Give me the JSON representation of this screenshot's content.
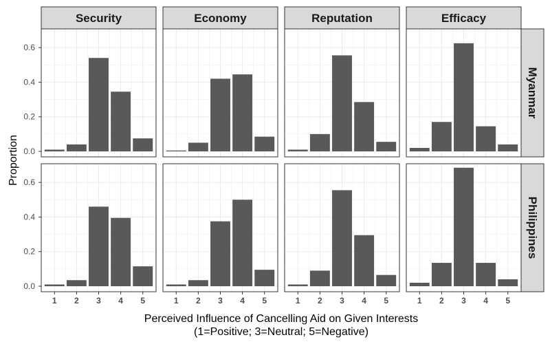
{
  "chart_data": {
    "type": "bar",
    "facet_columns": [
      "Security",
      "Economy",
      "Reputation",
      "Efficacy"
    ],
    "facet_rows": [
      "Myanmar",
      "Philippines"
    ],
    "categories": [
      "1",
      "2",
      "3",
      "4",
      "5"
    ],
    "ylabel": "Proportion",
    "xlabel_line1": "Perceived Influence of Cancelling Aid on Given Interests",
    "xlabel_line2": "(1=Positive; 3=Neutral; 5=Negative)",
    "ylim": [
      0,
      0.7
    ],
    "yticks": [
      0.0,
      0.2,
      0.4,
      0.6
    ],
    "ytick_labels": [
      "0.0",
      "0.2",
      "0.4",
      "0.6"
    ],
    "grid": true,
    "bar_color": "#595959",
    "panels": {
      "Myanmar": {
        "Security": [
          0.01,
          0.04,
          0.54,
          0.345,
          0.075
        ],
        "Economy": [
          0.005,
          0.05,
          0.42,
          0.445,
          0.085
        ],
        "Reputation": [
          0.01,
          0.1,
          0.555,
          0.285,
          0.055
        ],
        "Efficacy": [
          0.02,
          0.17,
          0.625,
          0.145,
          0.04
        ]
      },
      "Philippines": {
        "Security": [
          0.01,
          0.035,
          0.46,
          0.395,
          0.115
        ],
        "Economy": [
          0.01,
          0.035,
          0.375,
          0.5,
          0.095
        ],
        "Reputation": [
          0.01,
          0.09,
          0.555,
          0.295,
          0.065
        ],
        "Efficacy": [
          0.02,
          0.135,
          0.685,
          0.135,
          0.04
        ]
      }
    }
  }
}
